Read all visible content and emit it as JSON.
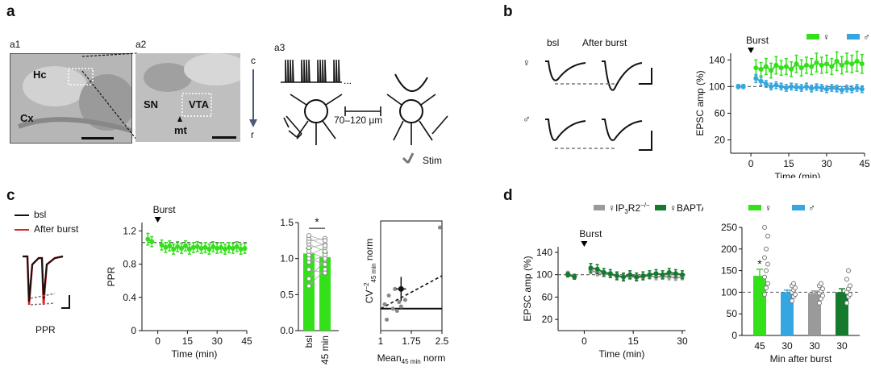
{
  "panels": {
    "a": {
      "letter": "a",
      "sub1": "a1",
      "sub2": "a2",
      "sub3": "a3",
      "a1_labels": {
        "hc": "Hc",
        "cx": "Cx"
      },
      "a2_labels": {
        "sn": "SN",
        "vta": "VTA",
        "mt": "mt"
      },
      "axis_c": "c",
      "axis_r": "r",
      "distance": "70–120 µm",
      "stim": "Stim"
    },
    "b": {
      "letter": "b",
      "bsl": "bsl",
      "after": "After burst",
      "female": "♀",
      "male": "♂"
    },
    "c": {
      "letter": "c",
      "legend_bsl": "bsl",
      "legend_after": "After burst",
      "ppr_caption": "PPR"
    },
    "d": {
      "letter": "d"
    }
  },
  "colors": {
    "female": "#33e01a",
    "male": "#35a6e0",
    "ip3": "#9a9a9a",
    "bapta": "#157a2e",
    "trace": "#111111",
    "after": "#e02020"
  },
  "chart_data": [
    {
      "id": "b_timecourse",
      "type": "line",
      "title": "",
      "xlabel": "Time (min)",
      "ylabel": "EPSC amp (%)",
      "xlim": [
        -8,
        45
      ],
      "ylim": [
        0,
        150
      ],
      "xticks": [
        0,
        15,
        30,
        45
      ],
      "yticks": [
        20,
        60,
        100,
        140
      ],
      "annotation": "Burst",
      "annotation_x": 0,
      "baseline": 100,
      "legend": [
        "♀",
        "♂"
      ],
      "series": [
        {
          "name": "♀",
          "color": "#33e01a",
          "x": [
            -5,
            -3,
            2,
            4,
            6,
            8,
            10,
            12,
            14,
            16,
            18,
            20,
            22,
            24,
            26,
            28,
            30,
            32,
            34,
            36,
            38,
            40,
            42,
            44
          ],
          "y": [
            100,
            100,
            128,
            126,
            130,
            124,
            132,
            128,
            130,
            126,
            134,
            128,
            132,
            130,
            136,
            132,
            134,
            130,
            138,
            132,
            136,
            134,
            138,
            134
          ],
          "err": [
            3,
            3,
            12,
            10,
            12,
            11,
            13,
            11,
            12,
            11,
            13,
            12,
            12,
            12,
            14,
            12,
            13,
            12,
            14,
            13,
            14,
            13,
            15,
            14
          ]
        },
        {
          "name": "♂",
          "color": "#35a6e0",
          "x": [
            -5,
            -3,
            2,
            4,
            6,
            8,
            10,
            12,
            14,
            16,
            18,
            20,
            22,
            24,
            26,
            28,
            30,
            32,
            34,
            36,
            38,
            40,
            42,
            44
          ],
          "y": [
            100,
            100,
            112,
            108,
            104,
            100,
            102,
            100,
            98,
            100,
            99,
            98,
            100,
            97,
            99,
            98,
            96,
            98,
            97,
            95,
            97,
            96,
            98,
            96
          ],
          "err": [
            3,
            3,
            6,
            6,
            5,
            5,
            5,
            5,
            5,
            5,
            5,
            5,
            5,
            5,
            5,
            5,
            5,
            5,
            5,
            5,
            5,
            5,
            5,
            5
          ]
        }
      ]
    },
    {
      "id": "c_ppr_time",
      "type": "line",
      "xlabel": "Time (min)",
      "ylabel": "PPR",
      "xlim": [
        -8,
        45
      ],
      "ylim": [
        0,
        1.3
      ],
      "xticks": [
        0,
        15,
        30,
        45
      ],
      "yticks": [
        0,
        0.4,
        0.8,
        1.2
      ],
      "annotation": "Burst",
      "annotation_x": 0,
      "baseline": 1.06,
      "series": [
        {
          "name": "PPR",
          "color": "#33e01a",
          "x": [
            -5,
            -3,
            2,
            4,
            6,
            8,
            10,
            12,
            14,
            16,
            18,
            20,
            22,
            24,
            26,
            28,
            30,
            32,
            34,
            36,
            38,
            40,
            42,
            44
          ],
          "y": [
            1.1,
            1.07,
            1.03,
            1.0,
            1.02,
            0.98,
            1.01,
            0.99,
            1.02,
            0.98,
            1.0,
            1.01,
            0.99,
            1.0,
            0.98,
            1.01,
            0.99,
            1.0,
            0.98,
            1.0,
            0.99,
            1.01,
            0.98,
            0.99
          ],
          "err": [
            0.07,
            0.06,
            0.06,
            0.06,
            0.06,
            0.06,
            0.06,
            0.06,
            0.06,
            0.06,
            0.06,
            0.06,
            0.06,
            0.06,
            0.06,
            0.06,
            0.06,
            0.06,
            0.06,
            0.06,
            0.06,
            0.06,
            0.06,
            0.06
          ]
        }
      ]
    },
    {
      "id": "c_ppr_bar",
      "type": "bar",
      "categories": [
        "bsl",
        "45 min"
      ],
      "values": [
        1.07,
        1.02
      ],
      "err": [
        0.07,
        0.06
      ],
      "ylim": [
        0,
        1.5
      ],
      "yticks": [
        0,
        0.5,
        1.0,
        1.5
      ],
      "significance": "*",
      "pairs": [
        [
          0.62,
          0.85
        ],
        [
          0.72,
          0.98
        ],
        [
          0.85,
          0.8
        ],
        [
          0.95,
          1.05
        ],
        [
          1.0,
          0.92
        ],
        [
          1.05,
          1.15
        ],
        [
          1.1,
          1.0
        ],
        [
          1.15,
          1.2
        ],
        [
          1.2,
          1.1
        ],
        [
          1.24,
          1.28
        ],
        [
          1.28,
          1.18
        ],
        [
          1.32,
          1.25
        ]
      ],
      "color": "#33e01a"
    },
    {
      "id": "c_cv",
      "type": "scatter",
      "xlabel_main": "Mean",
      "xlabel_sub": "45 min",
      "xlabel_tail": " norm",
      "ylabel_main": "CV",
      "ylabel_sup": "−2",
      "ylabel_sub": "45 min",
      "ylabel_tail": " norm",
      "xlim": [
        1,
        2.5
      ],
      "ylim": [
        0,
        5
      ],
      "xticks": [
        "1",
        "1.75",
        "2.5"
      ],
      "xtick_values": [
        1,
        1.75,
        2.5
      ],
      "points": [
        [
          1.1,
          1.2
        ],
        [
          1.15,
          0.5
        ],
        [
          1.2,
          1.6
        ],
        [
          1.3,
          1.0
        ],
        [
          1.35,
          1.9
        ],
        [
          1.4,
          0.9
        ],
        [
          1.45,
          1.3
        ],
        [
          1.5,
          1.1
        ],
        [
          1.6,
          1.4
        ],
        [
          2.45,
          4.7
        ]
      ],
      "mean": [
        1.5,
        1.9
      ],
      "mean_err": [
        0.12,
        0.55
      ],
      "unity_y": 1,
      "identity": [
        [
          1,
          1
        ],
        [
          2.5,
          2.5
        ]
      ]
    },
    {
      "id": "d_timecourse",
      "type": "line",
      "xlabel": "Time (min)",
      "ylabel": "EPSC amp (%)",
      "xlim": [
        -8,
        31
      ],
      "ylim": [
        0,
        150
      ],
      "xticks": [
        0,
        15,
        30
      ],
      "yticks": [
        20,
        60,
        100,
        140
      ],
      "annotation": "Burst",
      "annotation_x": 0,
      "baseline": 100,
      "legend": [
        {
          "label_main": "♀IP",
          "label_sub": "3",
          "label_tail": "R2",
          "label_sup": "−/−",
          "color": "#9a9a9a"
        },
        {
          "label_main": "♀BAPTA",
          "color": "#157a2e"
        }
      ],
      "series": [
        {
          "name": "♀IP3R2−/−",
          "color": "#9a9a9a",
          "x": [
            -5,
            -3,
            2,
            4,
            6,
            8,
            10,
            12,
            14,
            16,
            18,
            20,
            22,
            24,
            26,
            28,
            30
          ],
          "y": [
            102,
            98,
            108,
            104,
            102,
            100,
            98,
            96,
            97,
            95,
            96,
            98,
            96,
            97,
            96,
            95,
            96
          ],
          "err": [
            4,
            3,
            6,
            6,
            5,
            5,
            5,
            5,
            5,
            5,
            5,
            5,
            5,
            5,
            5,
            5,
            5
          ]
        },
        {
          "name": "♀BAPTA",
          "color": "#157a2e",
          "x": [
            -5,
            -3,
            2,
            4,
            6,
            8,
            10,
            12,
            14,
            16,
            18,
            20,
            22,
            24,
            26,
            28,
            30
          ],
          "y": [
            100,
            96,
            112,
            110,
            104,
            102,
            98,
            96,
            100,
            96,
            98,
            100,
            102,
            100,
            104,
            102,
            100
          ],
          "err": [
            4,
            4,
            8,
            8,
            7,
            7,
            7,
            7,
            7,
            7,
            7,
            7,
            7,
            7,
            7,
            7,
            7
          ]
        }
      ]
    },
    {
      "id": "d_bar",
      "type": "bar",
      "xlabel": "Min after burst",
      "categories": [
        "45",
        "30",
        "30",
        "30"
      ],
      "legend": [
        "♀",
        "♂"
      ],
      "values": [
        138,
        100,
        98,
        100
      ],
      "err": [
        15,
        5,
        5,
        8
      ],
      "colors": [
        "#33e01a",
        "#35a6e0",
        "#9a9a9a",
        "#157a2e"
      ],
      "ylim": [
        0,
        250
      ],
      "yticks": [
        0,
        50,
        100,
        150,
        200,
        250
      ],
      "baseline": 100,
      "significance": "*",
      "points": [
        [
          95,
          110,
          120,
          135,
          150,
          165,
          180,
          200,
          230,
          250
        ],
        [
          80,
          90,
          95,
          100,
          105,
          110,
          115,
          120
        ],
        [
          75,
          85,
          92,
          98,
          103,
          108,
          115,
          120
        ],
        [
          75,
          90,
          95,
          100,
          108,
          115,
          130,
          150
        ]
      ]
    }
  ]
}
